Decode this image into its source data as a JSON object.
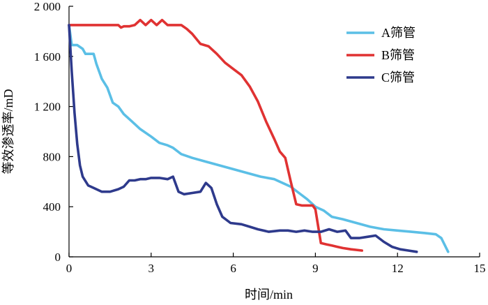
{
  "chart_data": {
    "type": "line",
    "xlabel": "时间/min",
    "ylabel": "等效渗透率/mD",
    "xlim": [
      0,
      15
    ],
    "ylim": [
      0,
      2000
    ],
    "xticks": [
      0,
      3,
      6,
      9,
      12,
      15
    ],
    "yticks": [
      0,
      400,
      800,
      1200,
      1600,
      2000
    ],
    "xtick_labels": [
      "0",
      "3",
      "6",
      "9",
      "12",
      "15"
    ],
    "ytick_labels": [
      "0",
      "400",
      "800",
      "1 200",
      "1 600",
      "2 000"
    ],
    "grid": false,
    "legend_position": "top-right",
    "series": [
      {
        "name": "A筛管",
        "color": "#5bbfe6",
        "x": [
          0,
          0.1,
          0.3,
          0.5,
          0.6,
          0.9,
          1.0,
          1.2,
          1.4,
          1.6,
          1.8,
          2.0,
          2.3,
          2.6,
          3.0,
          3.3,
          3.6,
          3.8,
          4.1,
          4.5,
          5.0,
          5.5,
          6.0,
          6.5,
          7.0,
          7.5,
          7.8,
          8.1,
          8.4,
          8.7,
          9.0,
          9.3,
          9.6,
          10.0,
          10.5,
          11.0,
          11.5,
          12.0,
          12.5,
          13.0,
          13.4,
          13.6,
          13.85
        ],
        "y": [
          1850,
          1690,
          1690,
          1660,
          1620,
          1620,
          1540,
          1420,
          1350,
          1230,
          1200,
          1140,
          1080,
          1020,
          960,
          910,
          890,
          870,
          820,
          790,
          760,
          730,
          700,
          670,
          640,
          620,
          590,
          560,
          510,
          460,
          400,
          370,
          320,
          300,
          270,
          240,
          220,
          210,
          200,
          190,
          180,
          150,
          40
        ]
      },
      {
        "name": "B筛管",
        "color": "#e03232",
        "x": [
          0,
          0.5,
          1.0,
          1.5,
          1.8,
          1.9,
          2.0,
          2.2,
          2.4,
          2.6,
          2.8,
          3.0,
          3.2,
          3.4,
          3.6,
          3.9,
          4.1,
          4.3,
          4.5,
          4.8,
          5.1,
          5.4,
          5.7,
          6.0,
          6.3,
          6.6,
          6.9,
          7.2,
          7.5,
          7.7,
          7.9,
          8.1,
          8.3,
          8.5,
          8.7,
          8.9,
          9.0,
          9.2,
          9.4,
          9.6,
          9.8,
          10.0,
          10.3,
          10.7
        ],
        "y": [
          1850,
          1850,
          1850,
          1850,
          1850,
          1830,
          1840,
          1840,
          1850,
          1890,
          1850,
          1890,
          1850,
          1890,
          1850,
          1850,
          1850,
          1820,
          1780,
          1700,
          1680,
          1620,
          1550,
          1500,
          1450,
          1360,
          1240,
          1080,
          940,
          840,
          790,
          600,
          420,
          410,
          410,
          410,
          380,
          110,
          100,
          90,
          80,
          70,
          60,
          50
        ]
      },
      {
        "name": "C筛管",
        "color": "#2e3a8c",
        "x": [
          0,
          0.1,
          0.2,
          0.3,
          0.4,
          0.5,
          0.7,
          0.9,
          1.2,
          1.5,
          1.8,
          2.0,
          2.2,
          2.4,
          2.6,
          2.8,
          3.0,
          3.3,
          3.6,
          3.8,
          4.0,
          4.2,
          4.5,
          4.8,
          5.0,
          5.2,
          5.4,
          5.6,
          5.9,
          6.3,
          6.6,
          6.9,
          7.3,
          7.7,
          8.0,
          8.3,
          8.6,
          8.9,
          9.2,
          9.5,
          9.8,
          10.1,
          10.3,
          10.6,
          10.9,
          11.2,
          11.5,
          11.8,
          12.1,
          12.4,
          12.7
        ],
        "y": [
          1850,
          1480,
          1150,
          900,
          730,
          640,
          570,
          550,
          520,
          520,
          540,
          560,
          610,
          610,
          620,
          620,
          630,
          630,
          620,
          640,
          520,
          500,
          510,
          520,
          590,
          550,
          420,
          320,
          270,
          260,
          240,
          220,
          200,
          210,
          210,
          200,
          210,
          200,
          200,
          220,
          200,
          210,
          150,
          150,
          160,
          170,
          120,
          80,
          60,
          50,
          40
        ]
      }
    ]
  }
}
